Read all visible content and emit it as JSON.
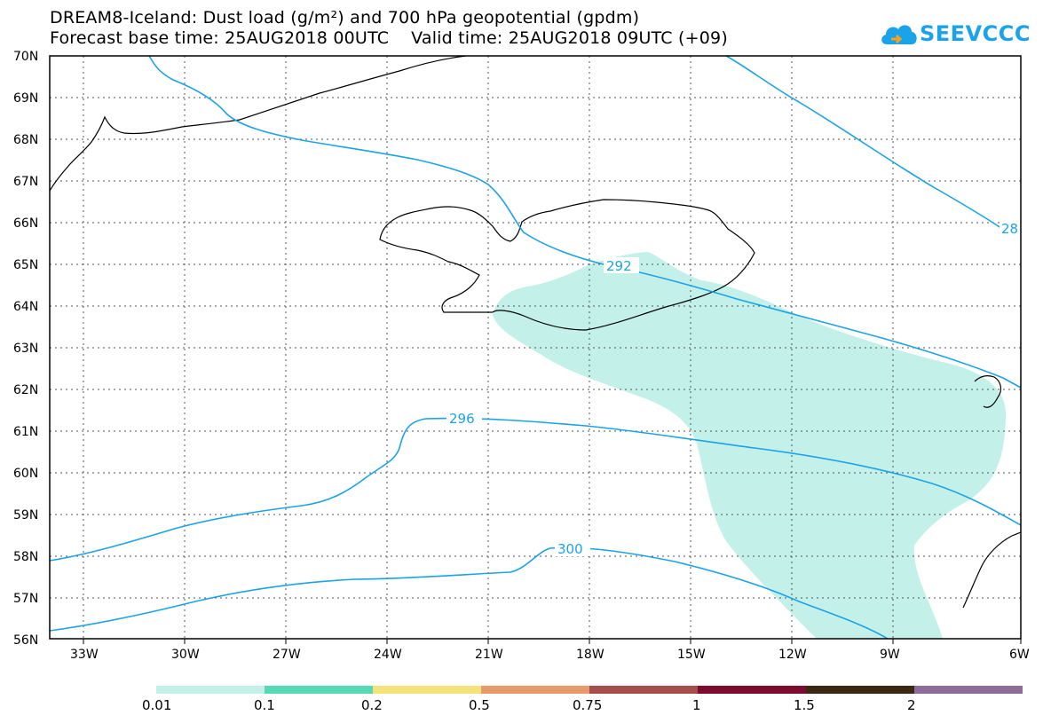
{
  "header": {
    "title_line1": "DREAM8-Iceland: Dust load (g/m²) and 700 hPa geopotential (gpdm)",
    "title_line2": "Forecast base time: 25AUG2018 00UTC    Valid time: 25AUG2018 09UTC (+09)"
  },
  "logo": {
    "text": "SEEVCCC",
    "icon": "cloud-icon",
    "color": "#1aa3e8"
  },
  "map": {
    "lat_labels": [
      "70N",
      "69N",
      "68N",
      "67N",
      "66N",
      "65N",
      "64N",
      "63N",
      "62N",
      "61N",
      "60N",
      "59N",
      "58N",
      "57N",
      "56N"
    ],
    "lon_labels": [
      "33W",
      "30W",
      "27W",
      "24W",
      "21W",
      "18W",
      "15W",
      "12W",
      "9W",
      "6W"
    ],
    "contour_labels": [
      "292",
      "296",
      "300",
      "28"
    ],
    "contour_color": "#1aa3e8",
    "dust_fill_color": "#c4f0ea"
  },
  "colorbar": {
    "labels": [
      "0.01",
      "0.1",
      "0.2",
      "0.5",
      "0.75",
      "1",
      "1.5",
      "2"
    ],
    "colors": [
      "#c4f0ea",
      "#58d9b6",
      "#f5e27a",
      "#e99a6d",
      "#a54e4a",
      "#7d0b2d",
      "#3b2812",
      "#8e6c99"
    ]
  }
}
